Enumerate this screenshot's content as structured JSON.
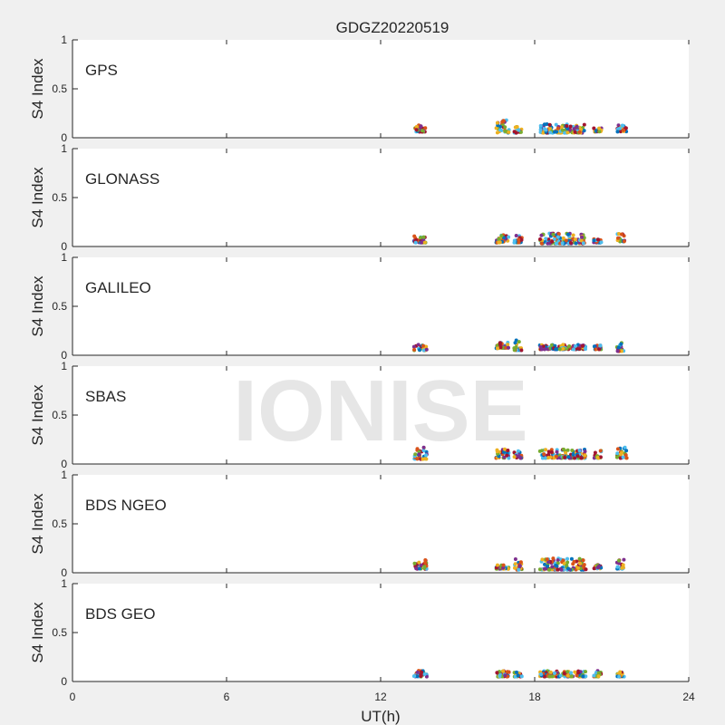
{
  "figure": {
    "title": "GDGZ20220519",
    "xlabel": "UT(h)",
    "ylabel": "S4 Index",
    "watermark": "IONISE"
  },
  "chart_data": {
    "type": "scatter",
    "xlim": [
      0,
      24
    ],
    "ylim": [
      0,
      1
    ],
    "xticks": [
      0,
      6,
      12,
      18,
      24
    ],
    "yticks": [
      0,
      0.5,
      1
    ],
    "colors": [
      "#0072BD",
      "#D95319",
      "#EDB120",
      "#7E2F8E",
      "#77AC30",
      "#4DBEEE",
      "#A2142F"
    ],
    "panels": [
      {
        "label": "GPS",
        "clusters": [
          {
            "x": [
              13.3,
              13.8
            ],
            "y": [
              0.06,
              0.14
            ]
          },
          {
            "x": [
              16.5,
              17.0
            ],
            "y": [
              0.05,
              0.18
            ]
          },
          {
            "x": [
              17.2,
              17.5
            ],
            "y": [
              0.05,
              0.12
            ]
          },
          {
            "x": [
              18.2,
              20.0
            ],
            "y": [
              0.05,
              0.14
            ]
          },
          {
            "x": [
              20.3,
              20.6
            ],
            "y": [
              0.06,
              0.1
            ]
          },
          {
            "x": [
              21.2,
              21.6
            ],
            "y": [
              0.06,
              0.13
            ]
          }
        ]
      },
      {
        "label": "GLONASS",
        "clusters": [
          {
            "x": [
              13.3,
              13.8
            ],
            "y": [
              0.04,
              0.11
            ]
          },
          {
            "x": [
              16.5,
              17.0
            ],
            "y": [
              0.04,
              0.12
            ]
          },
          {
            "x": [
              17.2,
              17.5
            ],
            "y": [
              0.04,
              0.12
            ]
          },
          {
            "x": [
              18.2,
              20.0
            ],
            "y": [
              0.03,
              0.14
            ]
          },
          {
            "x": [
              20.3,
              20.6
            ],
            "y": [
              0.04,
              0.08
            ]
          },
          {
            "x": [
              21.2,
              21.5
            ],
            "y": [
              0.05,
              0.13
            ]
          }
        ]
      },
      {
        "label": "GALILEO",
        "clusters": [
          {
            "x": [
              13.3,
              13.8
            ],
            "y": [
              0.05,
              0.12
            ]
          },
          {
            "x": [
              16.5,
              17.0
            ],
            "y": [
              0.07,
              0.13
            ]
          },
          {
            "x": [
              17.2,
              17.5
            ],
            "y": [
              0.05,
              0.16
            ]
          },
          {
            "x": [
              18.2,
              20.0
            ],
            "y": [
              0.06,
              0.11
            ]
          },
          {
            "x": [
              20.3,
              20.6
            ],
            "y": [
              0.06,
              0.1
            ]
          },
          {
            "x": [
              21.2,
              21.5
            ],
            "y": [
              0.04,
              0.15
            ]
          }
        ]
      },
      {
        "label": "SBAS",
        "clusters": [
          {
            "x": [
              13.3,
              13.8
            ],
            "y": [
              0.05,
              0.17
            ]
          },
          {
            "x": [
              16.5,
              17.0
            ],
            "y": [
              0.06,
              0.15
            ]
          },
          {
            "x": [
              17.2,
              17.5
            ],
            "y": [
              0.06,
              0.15
            ]
          },
          {
            "x": [
              18.2,
              20.0
            ],
            "y": [
              0.06,
              0.15
            ]
          },
          {
            "x": [
              20.3,
              20.6
            ],
            "y": [
              0.06,
              0.14
            ]
          },
          {
            "x": [
              21.2,
              21.6
            ],
            "y": [
              0.06,
              0.17
            ]
          }
        ]
      },
      {
        "label": "BDS NGEO",
        "clusters": [
          {
            "x": [
              13.3,
              13.8
            ],
            "y": [
              0.04,
              0.13
            ]
          },
          {
            "x": [
              16.5,
              17.0
            ],
            "y": [
              0.04,
              0.08
            ]
          },
          {
            "x": [
              17.2,
              17.5
            ],
            "y": [
              0.03,
              0.14
            ]
          },
          {
            "x": [
              18.2,
              20.0
            ],
            "y": [
              0.03,
              0.15
            ]
          },
          {
            "x": [
              20.3,
              20.6
            ],
            "y": [
              0.04,
              0.08
            ]
          },
          {
            "x": [
              21.2,
              21.5
            ],
            "y": [
              0.04,
              0.14
            ]
          }
        ]
      },
      {
        "label": "BDS GEO",
        "clusters": [
          {
            "x": [
              13.3,
              13.8
            ],
            "y": [
              0.05,
              0.11
            ]
          },
          {
            "x": [
              16.5,
              17.0
            ],
            "y": [
              0.05,
              0.11
            ]
          },
          {
            "x": [
              17.2,
              17.5
            ],
            "y": [
              0.05,
              0.1
            ]
          },
          {
            "x": [
              18.2,
              20.0
            ],
            "y": [
              0.05,
              0.11
            ]
          },
          {
            "x": [
              20.3,
              20.6
            ],
            "y": [
              0.05,
              0.11
            ]
          },
          {
            "x": [
              21.2,
              21.5
            ],
            "y": [
              0.05,
              0.1
            ]
          }
        ]
      }
    ]
  }
}
